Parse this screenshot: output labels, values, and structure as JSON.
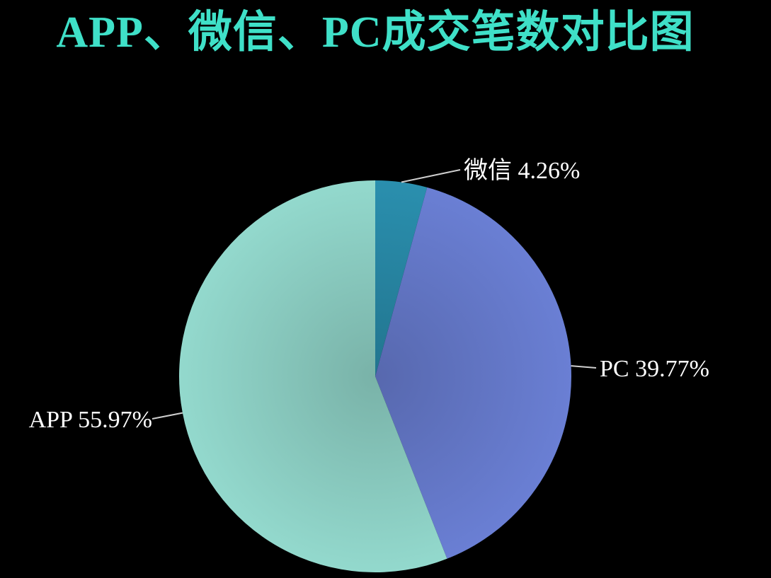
{
  "chart_data": {
    "type": "pie",
    "title": "APP、微信、PC成交笔数对比图",
    "title_color": "#3fe0c8",
    "background": "#000000",
    "label_color": "#ffffff",
    "start_angle_deg": 0,
    "direction": "clockwise",
    "slices": [
      {
        "name": "微信",
        "value": 4.26,
        "label": "微信 4.26%",
        "color": "#2a8fae"
      },
      {
        "name": "PC",
        "value": 39.77,
        "label": "PC 39.77%",
        "color": "#6a7fd4"
      },
      {
        "name": "APP",
        "value": 55.97,
        "label": "APP 55.97%",
        "color": "#93d9cd"
      }
    ]
  }
}
